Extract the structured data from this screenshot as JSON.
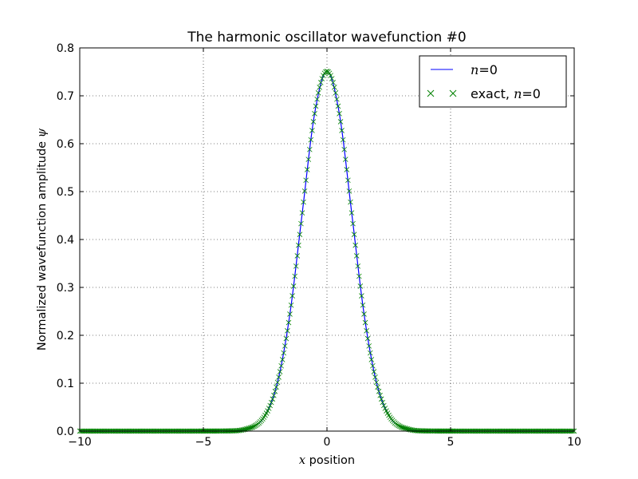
{
  "chart_data": {
    "type": "line",
    "title": "The harmonic oscillator wavefunction #0",
    "xlabel_var": "x",
    "xlabel": " position",
    "ylabel": "Normalized wavefunction amplitude ",
    "ylabel_var": "ψ",
    "xlim": [
      -10,
      10
    ],
    "ylim": [
      0.0,
      0.8
    ],
    "xticks": [
      -10,
      -5,
      0,
      5,
      10
    ],
    "xtick_labels": [
      "−10",
      "−5",
      "0",
      "5",
      "10"
    ],
    "yticks": [
      0.0,
      0.1,
      0.2,
      0.3,
      0.4,
      0.5,
      0.6,
      0.7,
      0.8
    ],
    "ytick_labels": [
      "0.0",
      "0.1",
      "0.2",
      "0.3",
      "0.4",
      "0.5",
      "0.6",
      "0.7",
      "0.8"
    ],
    "grid": true,
    "legend_position": "top-right",
    "series": [
      {
        "name": "n=0",
        "legend_math": "n",
        "legend_suffix": "=0",
        "style": "line",
        "color": "#0000ff",
        "x": [
          -10,
          -4,
          -3.5,
          -3,
          -2.5,
          -2,
          -1.5,
          -1,
          -0.5,
          0,
          0.5,
          1,
          1.5,
          2,
          2.5,
          3,
          3.5,
          4,
          10
        ],
        "y": [
          0.0,
          0.0003,
          0.0017,
          0.0084,
          0.033,
          0.1019,
          0.2443,
          0.4556,
          0.6628,
          0.7511,
          0.6628,
          0.4556,
          0.2443,
          0.1019,
          0.033,
          0.0084,
          0.0017,
          0.0003,
          0.0
        ]
      },
      {
        "name": "exact, n=0",
        "legend_prefix": "exact, ",
        "legend_math": "n",
        "legend_suffix": "=0",
        "style": "markers",
        "marker": "x",
        "color": "#008000",
        "x": [
          -10,
          -8,
          -6,
          -4,
          -3.5,
          -3,
          -2.75,
          -2.5,
          -2.25,
          -2,
          -1.75,
          -1.5,
          -1.25,
          -1,
          -0.75,
          -0.5,
          -0.25,
          0,
          0.25,
          0.5,
          0.75,
          1,
          1.25,
          1.5,
          1.75,
          2,
          2.25,
          2.5,
          2.75,
          3,
          3.5,
          4,
          6,
          8,
          10
        ],
        "y": [
          0.0,
          0.0,
          0.0,
          0.0003,
          0.0017,
          0.0084,
          0.017,
          0.033,
          0.0598,
          0.1019,
          0.1631,
          0.2443,
          0.3444,
          0.4556,
          0.5673,
          0.6628,
          0.7277,
          0.7511,
          0.7277,
          0.6628,
          0.5673,
          0.4556,
          0.3444,
          0.2443,
          0.1631,
          0.1019,
          0.0598,
          0.033,
          0.017,
          0.0084,
          0.0017,
          0.0003,
          0.0,
          0.0,
          0.0
        ]
      }
    ]
  }
}
